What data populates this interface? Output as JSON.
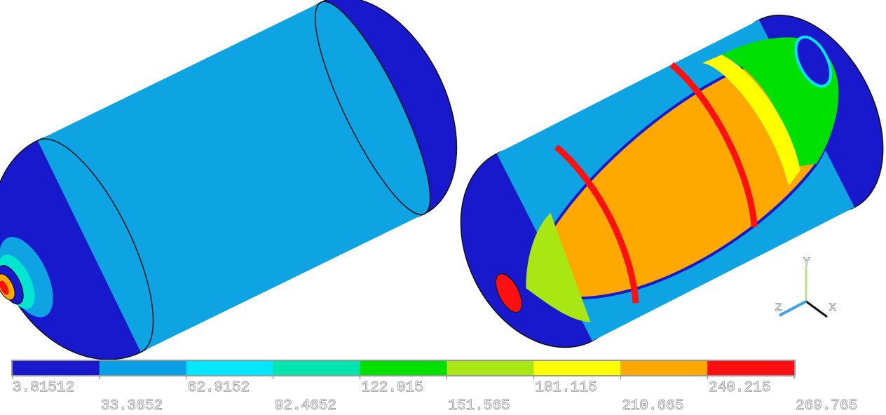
{
  "legend": {
    "levels": [
      3.81512,
      33.3652,
      62.9152,
      92.4652,
      122.015,
      151.565,
      181.115,
      210.665,
      240.215,
      269.765
    ],
    "colors": [
      "#1a1acc",
      "#0aa0e6",
      "#00e6ff",
      "#00e6b0",
      "#00e000",
      "#a8e614",
      "#ffff00",
      "#ffa800",
      "#ff1010"
    ]
  },
  "triad": {
    "y": "Y",
    "z": "Z",
    "x": "X"
  }
}
